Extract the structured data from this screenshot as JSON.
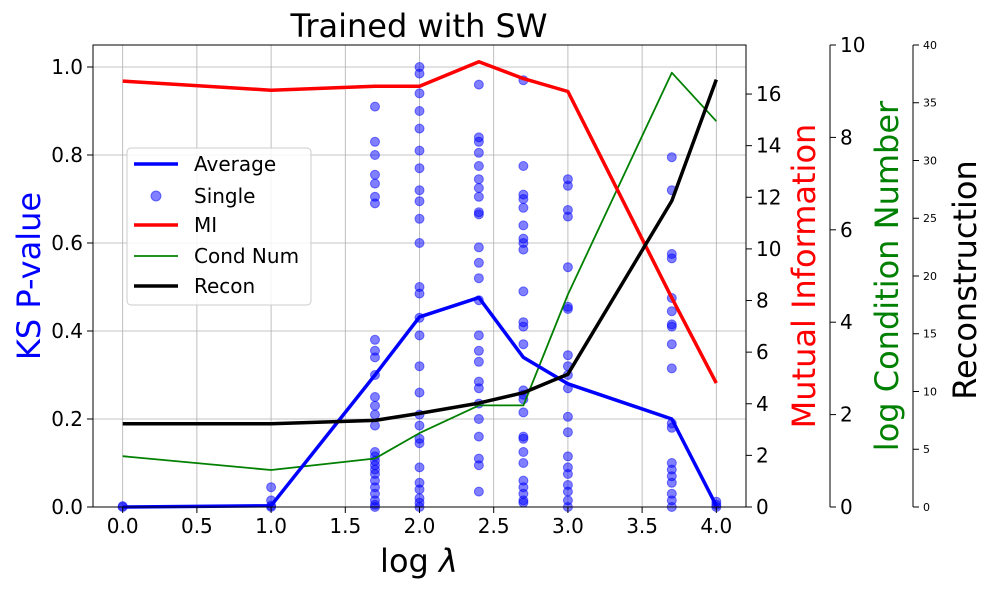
{
  "chart_data": {
    "type": "line",
    "title": "Trained with SW",
    "xlabel": "log λ",
    "xlabel_parts": {
      "prefix": "log ",
      "symbol": "λ"
    },
    "x_ticks": [
      "0.0",
      "0.5",
      "1.0",
      "1.5",
      "2.0",
      "2.5",
      "3.0",
      "3.5",
      "4.0"
    ],
    "xlim": [
      -0.2,
      4.2
    ],
    "grid": true,
    "legend_position": "center-left",
    "axes": {
      "left": {
        "label": "KS P-value",
        "color": "#0000ff",
        "ylim": [
          0,
          1.05
        ],
        "ticks": [
          "0.0",
          "0.2",
          "0.4",
          "0.6",
          "0.8",
          "1.0"
        ]
      },
      "right_mi": {
        "label": "Mutual Information",
        "color": "#ff0000",
        "ylim": [
          0,
          17.9
        ],
        "ticks": [
          "0",
          "2",
          "4",
          "6",
          "8",
          "10",
          "12",
          "14",
          "16"
        ]
      },
      "right_cond": {
        "label": "log Condition Number",
        "color": "#008000",
        "ylim": [
          0,
          10
        ],
        "ticks": [
          "0",
          "2",
          "4",
          "6",
          "8",
          "10"
        ]
      },
      "right_recon": {
        "label": "Reconstruction",
        "color": "#000000",
        "ylim": [
          0,
          40
        ],
        "ticks": [
          "0",
          "5",
          "10",
          "15",
          "20",
          "25",
          "30",
          "35",
          "40"
        ]
      }
    },
    "series": [
      {
        "name": "Average",
        "axis": "left",
        "kind": "line",
        "color": "#0000ff",
        "x": [
          0,
          1,
          1.7,
          2,
          2.4,
          2.7,
          3,
          3.7,
          4
        ],
        "y": [
          0.0,
          0.003,
          0.3,
          0.432,
          0.476,
          0.34,
          0.28,
          0.2,
          0.003
        ]
      },
      {
        "name": "Single",
        "axis": "left",
        "kind": "scatter",
        "color": "#0000ff",
        "points": [
          [
            0,
            0.0
          ],
          [
            0,
            0.002
          ],
          [
            1,
            0.0
          ],
          [
            1,
            0.003
          ],
          [
            1,
            0.015
          ],
          [
            1,
            0.045
          ],
          [
            1.7,
            0.0
          ],
          [
            1.7,
            0.005
          ],
          [
            1.7,
            0.015
          ],
          [
            1.7,
            0.03
          ],
          [
            1.7,
            0.045
          ],
          [
            1.7,
            0.06
          ],
          [
            1.7,
            0.075
          ],
          [
            1.7,
            0.085
          ],
          [
            1.7,
            0.095
          ],
          [
            1.7,
            0.105
          ],
          [
            1.7,
            0.115
          ],
          [
            1.7,
            0.125
          ],
          [
            1.7,
            0.185
          ],
          [
            1.7,
            0.21
          ],
          [
            1.7,
            0.23
          ],
          [
            1.7,
            0.25
          ],
          [
            1.7,
            0.3
          ],
          [
            1.7,
            0.34
          ],
          [
            1.7,
            0.355
          ],
          [
            1.7,
            0.38
          ],
          [
            1.7,
            0.69
          ],
          [
            1.7,
            0.705
          ],
          [
            1.7,
            0.735
          ],
          [
            1.7,
            0.755
          ],
          [
            1.7,
            0.8
          ],
          [
            1.7,
            0.83
          ],
          [
            1.7,
            0.91
          ],
          [
            2,
            0.0
          ],
          [
            2,
            0.01
          ],
          [
            2,
            0.02
          ],
          [
            2,
            0.04
          ],
          [
            2,
            0.055
          ],
          [
            2,
            0.09
          ],
          [
            2,
            0.145
          ],
          [
            2,
            0.155
          ],
          [
            2,
            0.185
          ],
          [
            2,
            0.21
          ],
          [
            2,
            0.26
          ],
          [
            2,
            0.32
          ],
          [
            2,
            0.39
          ],
          [
            2,
            0.43
          ],
          [
            2,
            0.485
          ],
          [
            2,
            0.5
          ],
          [
            2,
            0.6
          ],
          [
            2,
            0.655
          ],
          [
            2,
            0.695
          ],
          [
            2,
            0.72
          ],
          [
            2,
            0.77
          ],
          [
            2,
            0.81
          ],
          [
            2,
            0.86
          ],
          [
            2,
            0.9
          ],
          [
            2,
            0.94
          ],
          [
            2,
            0.985
          ],
          [
            2,
            1.0
          ],
          [
            2.4,
            0.035
          ],
          [
            2.4,
            0.095
          ],
          [
            2.4,
            0.11
          ],
          [
            2.4,
            0.16
          ],
          [
            2.4,
            0.2
          ],
          [
            2.4,
            0.235
          ],
          [
            2.4,
            0.27
          ],
          [
            2.4,
            0.285
          ],
          [
            2.4,
            0.33
          ],
          [
            2.4,
            0.355
          ],
          [
            2.4,
            0.39
          ],
          [
            2.4,
            0.47
          ],
          [
            2.4,
            0.52
          ],
          [
            2.4,
            0.555
          ],
          [
            2.4,
            0.59
          ],
          [
            2.4,
            0.665
          ],
          [
            2.4,
            0.67
          ],
          [
            2.4,
            0.705
          ],
          [
            2.4,
            0.725
          ],
          [
            2.4,
            0.745
          ],
          [
            2.4,
            0.775
          ],
          [
            2.4,
            0.805
          ],
          [
            2.4,
            0.83
          ],
          [
            2.4,
            0.84
          ],
          [
            2.4,
            0.96
          ],
          [
            2.7,
            0.01
          ],
          [
            2.7,
            0.015
          ],
          [
            2.7,
            0.03
          ],
          [
            2.7,
            0.045
          ],
          [
            2.7,
            0.06
          ],
          [
            2.7,
            0.1
          ],
          [
            2.7,
            0.125
          ],
          [
            2.7,
            0.155
          ],
          [
            2.7,
            0.16
          ],
          [
            2.7,
            0.215
          ],
          [
            2.7,
            0.245
          ],
          [
            2.7,
            0.255
          ],
          [
            2.7,
            0.265
          ],
          [
            2.7,
            0.37
          ],
          [
            2.7,
            0.41
          ],
          [
            2.7,
            0.42
          ],
          [
            2.7,
            0.49
          ],
          [
            2.7,
            0.585
          ],
          [
            2.7,
            0.6
          ],
          [
            2.7,
            0.61
          ],
          [
            2.7,
            0.64
          ],
          [
            2.7,
            0.68
          ],
          [
            2.7,
            0.7
          ],
          [
            2.7,
            0.71
          ],
          [
            2.7,
            0.775
          ],
          [
            2.7,
            0.97
          ],
          [
            3,
            0.0
          ],
          [
            3,
            0.015
          ],
          [
            3,
            0.035
          ],
          [
            3,
            0.05
          ],
          [
            3,
            0.075
          ],
          [
            3,
            0.09
          ],
          [
            3,
            0.115
          ],
          [
            3,
            0.17
          ],
          [
            3,
            0.205
          ],
          [
            3,
            0.27
          ],
          [
            3,
            0.3
          ],
          [
            3,
            0.32
          ],
          [
            3,
            0.345
          ],
          [
            3,
            0.45
          ],
          [
            3,
            0.455
          ],
          [
            3,
            0.545
          ],
          [
            3,
            0.66
          ],
          [
            3,
            0.675
          ],
          [
            3,
            0.73
          ],
          [
            3,
            0.745
          ],
          [
            3.7,
            0.0
          ],
          [
            3.7,
            0.015
          ],
          [
            3.7,
            0.03
          ],
          [
            3.7,
            0.055
          ],
          [
            3.7,
            0.07
          ],
          [
            3.7,
            0.085
          ],
          [
            3.7,
            0.1
          ],
          [
            3.7,
            0.18
          ],
          [
            3.7,
            0.19
          ],
          [
            3.7,
            0.315
          ],
          [
            3.7,
            0.37
          ],
          [
            3.7,
            0.41
          ],
          [
            3.7,
            0.415
          ],
          [
            3.7,
            0.445
          ],
          [
            3.7,
            0.475
          ],
          [
            3.7,
            0.565
          ],
          [
            3.7,
            0.575
          ],
          [
            3.7,
            0.72
          ],
          [
            3.7,
            0.795
          ],
          [
            4,
            0.0
          ],
          [
            4,
            0.005
          ],
          [
            4,
            0.012
          ]
        ]
      },
      {
        "name": "MI",
        "axis": "right_mi",
        "kind": "line",
        "color": "#ff0000",
        "x": [
          0,
          1,
          1.7,
          2,
          2.4,
          2.7,
          3,
          3.7,
          4
        ],
        "y": [
          16.5,
          16.15,
          16.3,
          16.3,
          17.25,
          16.6,
          16.1,
          8.1,
          4.8
        ]
      },
      {
        "name": "Cond Num",
        "axis": "right_cond",
        "kind": "line",
        "color": "#008000",
        "x": [
          0,
          1,
          1.7,
          2,
          2.4,
          2.7,
          3,
          3.7,
          4
        ],
        "y": [
          1.1,
          0.8,
          1.05,
          1.6,
          2.2,
          2.2,
          4.6,
          9.4,
          8.35
        ]
      },
      {
        "name": "Recon",
        "axis": "right_recon",
        "kind": "line",
        "color": "#000000",
        "x": [
          0,
          1,
          1.7,
          2,
          2.4,
          2.7,
          3,
          3.7,
          4
        ],
        "y": [
          7.2,
          7.2,
          7.5,
          8.1,
          9.0,
          9.9,
          11.5,
          26.5,
          37.0
        ]
      }
    ]
  }
}
